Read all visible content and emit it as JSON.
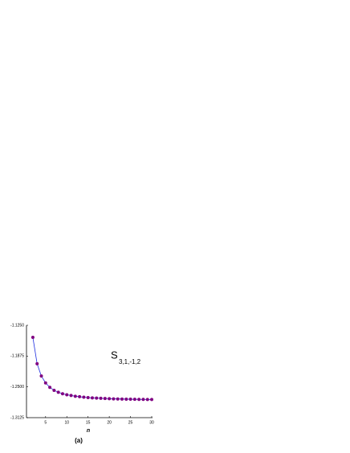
{
  "chart_data": {
    "type": "line",
    "x": [
      2,
      3,
      4,
      5,
      6,
      7,
      8,
      9,
      10,
      11,
      12,
      13,
      14,
      15,
      16,
      17,
      18,
      19,
      20,
      21,
      22,
      23,
      24,
      25,
      26,
      27,
      28,
      29,
      30
    ],
    "series": [
      {
        "line_color": "#2030e0",
        "color": "#800080",
        "values": [
          -1.1495,
          -1.203,
          -1.228,
          -1.242,
          -1.251,
          -1.257,
          -1.261,
          -1.264,
          -1.266,
          -1.2675,
          -1.269,
          -1.27,
          -1.271,
          -1.2717,
          -1.2723,
          -1.2728,
          -1.2732,
          -1.2736,
          -1.274,
          -1.2743,
          -1.2745,
          -1.2747,
          -1.2749,
          -1.2751,
          -1.2753,
          -1.2754,
          -1.2755,
          -1.2756,
          -1.2757
        ]
      }
    ],
    "xlim": [
      0.5,
      30
    ],
    "xticks": [
      5,
      10,
      15,
      20,
      25,
      30
    ],
    "ylim": [
      -1.3125,
      -1.125
    ],
    "yticks": [
      {
        "value": -1.3125,
        "label": "-1.3125"
      },
      {
        "value": -1.25,
        "label": "-1.2500"
      },
      -1.1875,
      {
        "value": -1.125,
        "label": "-1.1250"
      }
    ],
    "xlabel": "n",
    "annotation": {
      "main": "S",
      "sub": "3,1,-1,2"
    },
    "caption": "(a)"
  }
}
